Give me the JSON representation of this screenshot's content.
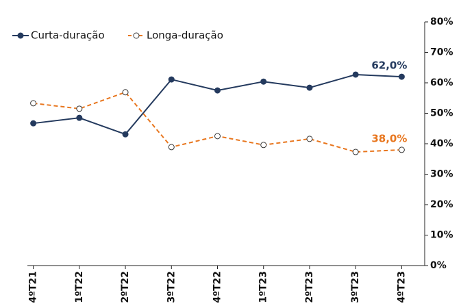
{
  "chart_data": {
    "type": "line",
    "categories": [
      "4ºT21",
      "1ºT22",
      "2ºT22",
      "3ºT22",
      "4ºT22",
      "1ºT23",
      "2ºT23",
      "3ºT23",
      "4ºT23"
    ],
    "series": [
      {
        "name": "Curta-duração",
        "color": "#243a5e",
        "values": [
          46.7,
          48.5,
          43.1,
          61.1,
          57.5,
          60.4,
          58.4,
          62.7,
          62.0
        ],
        "value_labels": [
          null,
          null,
          null,
          null,
          null,
          null,
          null,
          null,
          "62,0%"
        ]
      },
      {
        "name": "Longa-duração",
        "color": "#e8761e",
        "dashed": true,
        "values": [
          53.3,
          51.5,
          56.9,
          38.9,
          42.5,
          39.6,
          41.6,
          37.3,
          38.0
        ],
        "value_labels": [
          null,
          null,
          null,
          null,
          null,
          null,
          null,
          null,
          "38,0%"
        ]
      }
    ],
    "ylim": [
      0,
      80
    ],
    "yticks": [
      {
        "value": 0,
        "label": "0%"
      },
      {
        "value": 10,
        "label": "10%"
      },
      {
        "value": 20,
        "label": "20%"
      },
      {
        "value": 30,
        "label": "30%"
      },
      {
        "value": 40,
        "label": "40%"
      },
      {
        "value": 50,
        "label": "50%"
      },
      {
        "value": 60,
        "label": "60%"
      },
      {
        "value": 70,
        "label": "70%"
      },
      {
        "value": 80,
        "label": "80%"
      }
    ],
    "y_axis_side": "right",
    "grid": false,
    "legend": "top-left"
  }
}
